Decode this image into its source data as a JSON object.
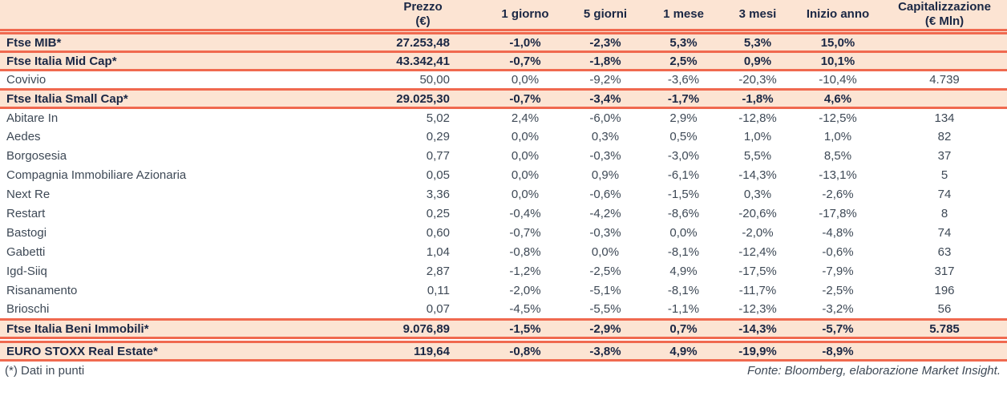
{
  "colors": {
    "row_highlight": "#fce4d3",
    "rule_line": "#f0694f",
    "index_text": "#1a2744",
    "stock_text": "#3e4956"
  },
  "footer": {
    "note": "(*) Dati in punti",
    "source": "Fonte: Bloomberg, elaborazione Market Insight."
  },
  "chart_data": {
    "type": "table",
    "title": "",
    "columns": [
      {
        "label": "",
        "sub": ""
      },
      {
        "label": "Prezzo",
        "sub": "(€)"
      },
      {
        "label": "1 giorno",
        "sub": ""
      },
      {
        "label": "5 giorni",
        "sub": ""
      },
      {
        "label": "1 mese",
        "sub": ""
      },
      {
        "label": "3 mesi",
        "sub": ""
      },
      {
        "label": "Inizio anno",
        "sub": ""
      },
      {
        "label": "Capitalizzazione",
        "sub": "(€ Mln)"
      }
    ],
    "rows": [
      {
        "name": "Ftse MIB*",
        "style": "index",
        "gap_before": "peach",
        "cells": [
          "27.253,48",
          "-1,0%",
          "-2,3%",
          "5,3%",
          "5,3%",
          "15,0%",
          ""
        ]
      },
      {
        "name": "Ftse Italia Mid Cap*",
        "style": "index",
        "cells": [
          "43.342,41",
          "-0,7%",
          "-1,8%",
          "2,5%",
          "0,9%",
          "10,1%",
          ""
        ]
      },
      {
        "name": "Covivio",
        "style": "stock",
        "cells": [
          "50,00",
          "0,0%",
          "-9,2%",
          "-3,6%",
          "-20,3%",
          "-10,4%",
          "4.739"
        ]
      },
      {
        "name": "Ftse Italia Small Cap*",
        "style": "index",
        "cells": [
          "29.025,30",
          "-0,7%",
          "-3,4%",
          "-1,7%",
          "-1,8%",
          "4,6%",
          ""
        ]
      },
      {
        "name": "Abitare In",
        "style": "stock",
        "cells": [
          "5,02",
          "2,4%",
          "-6,0%",
          "2,9%",
          "-12,8%",
          "-12,5%",
          "134"
        ]
      },
      {
        "name": "Aedes",
        "style": "stock",
        "cells": [
          "0,29",
          "0,0%",
          "0,3%",
          "0,5%",
          "1,0%",
          "1,0%",
          "82"
        ]
      },
      {
        "name": "Borgosesia",
        "style": "stock",
        "cells": [
          "0,77",
          "0,0%",
          "-0,3%",
          "-3,0%",
          "5,5%",
          "8,5%",
          "37"
        ]
      },
      {
        "name": "Compagnia Immobiliare Azionaria",
        "style": "stock",
        "cells": [
          "0,05",
          "0,0%",
          "0,9%",
          "-6,1%",
          "-14,3%",
          "-13,1%",
          "5"
        ]
      },
      {
        "name": "Next Re",
        "style": "stock",
        "cells": [
          "3,36",
          "0,0%",
          "-0,6%",
          "-1,5%",
          "0,3%",
          "-2,6%",
          "74"
        ]
      },
      {
        "name": "Restart",
        "style": "stock",
        "cells": [
          "0,25",
          "-0,4%",
          "-4,2%",
          "-8,6%",
          "-20,6%",
          "-17,8%",
          "8"
        ]
      },
      {
        "name": "Bastogi",
        "style": "stock",
        "cells": [
          "0,60",
          "-0,7%",
          "-0,3%",
          "0,0%",
          "-2,0%",
          "-4,8%",
          "74"
        ]
      },
      {
        "name": "Gabetti",
        "style": "stock",
        "cells": [
          "1,04",
          "-0,8%",
          "0,0%",
          "-8,1%",
          "-12,4%",
          "-0,6%",
          "63"
        ]
      },
      {
        "name": "Igd-Siiq",
        "style": "stock",
        "cells": [
          "2,87",
          "-1,2%",
          "-2,5%",
          "4,9%",
          "-17,5%",
          "-7,9%",
          "317"
        ]
      },
      {
        "name": "Risanamento",
        "style": "stock",
        "cells": [
          "0,11",
          "-2,0%",
          "-5,1%",
          "-8,1%",
          "-11,7%",
          "-2,5%",
          "196"
        ]
      },
      {
        "name": "Brioschi",
        "style": "stock",
        "cells": [
          "0,07",
          "-4,5%",
          "-5,5%",
          "-1,1%",
          "-12,3%",
          "-3,2%",
          "56"
        ]
      },
      {
        "name": "Ftse Italia Beni Immobili*",
        "style": "index",
        "cells": [
          "9.076,89",
          "-1,5%",
          "-2,9%",
          "0,7%",
          "-14,3%",
          "-5,7%",
          "5.785"
        ]
      },
      {
        "name": "EURO STOXX Real Estate*",
        "style": "index",
        "gap_before": "white",
        "cells": [
          "119,64",
          "-0,8%",
          "-3,8%",
          "4,9%",
          "-19,9%",
          "-8,9%",
          ""
        ]
      }
    ]
  }
}
